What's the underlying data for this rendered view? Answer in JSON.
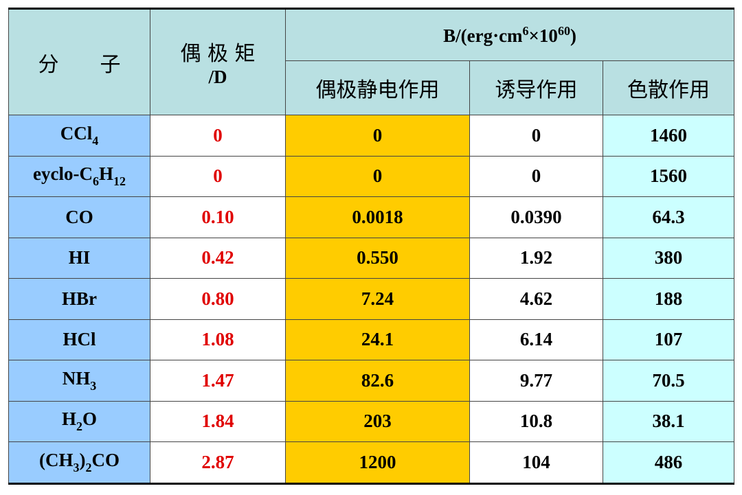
{
  "table": {
    "header": {
      "molecule": "分　　子",
      "dipole": [
        "偶 极 矩",
        "/D"
      ],
      "b_group": [
        {
          "t": "B/(erg·cm"
        },
        {
          "sup": "6"
        },
        {
          "t": "×10"
        },
        {
          "sup": "60"
        },
        {
          "t": ")"
        }
      ],
      "sub": [
        "偶极静电作用",
        "诱导作用",
        "色散作用"
      ]
    },
    "rows": [
      {
        "molecule": [
          {
            "t": "CCl"
          },
          {
            "sub": "4"
          }
        ],
        "cells": [
          "0",
          "0",
          "0",
          "1460"
        ]
      },
      {
        "molecule": [
          {
            "t": "eyclo-C"
          },
          {
            "sub": "6"
          },
          {
            "t": "H"
          },
          {
            "sub": "12"
          }
        ],
        "cells": [
          "0",
          "0",
          "0",
          "1560"
        ]
      },
      {
        "molecule": [
          {
            "t": "CO"
          }
        ],
        "cells": [
          "0.10",
          "0.0018",
          "0.0390",
          "64.3"
        ]
      },
      {
        "molecule": [
          {
            "t": "HI"
          }
        ],
        "cells": [
          "0.42",
          "0.550",
          "1.92",
          "380"
        ]
      },
      {
        "molecule": [
          {
            "t": "HBr"
          }
        ],
        "cells": [
          "0.80",
          "7.24",
          "4.62",
          "188"
        ]
      },
      {
        "molecule": [
          {
            "t": "HCl"
          }
        ],
        "cells": [
          "1.08",
          "24.1",
          "6.14",
          "107"
        ]
      },
      {
        "molecule": [
          {
            "t": "NH"
          },
          {
            "sub": "3"
          }
        ],
        "cells": [
          "1.47",
          "82.6",
          "9.77",
          "70.5"
        ]
      },
      {
        "molecule": [
          {
            "t": "H"
          },
          {
            "sub": "2"
          },
          {
            "t": "O"
          }
        ],
        "cells": [
          "1.84",
          "203",
          "10.8",
          "38.1"
        ]
      },
      {
        "molecule": [
          {
            "t": "(CH"
          },
          {
            "sub": "3"
          },
          {
            "t": ")"
          },
          {
            "sub": "2"
          },
          {
            "t": "CO"
          }
        ],
        "cells": [
          "2.87",
          "1200",
          "104",
          "486"
        ]
      }
    ]
  }
}
